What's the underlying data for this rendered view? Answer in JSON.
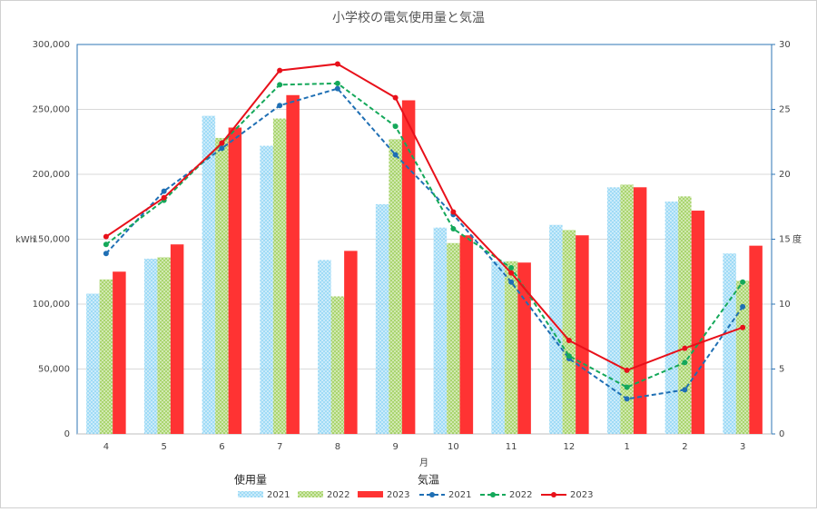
{
  "chart_data": {
    "type": "combo",
    "title": "小学校の電気使用量と気温",
    "xlabel": "月",
    "ylabel": "kWh",
    "y2label": "度",
    "categories": [
      "4",
      "5",
      "6",
      "7",
      "8",
      "9",
      "10",
      "11",
      "12",
      "1",
      "2",
      "3"
    ],
    "ylim": [
      0,
      300000
    ],
    "yticks": [
      0,
      {
        "value": 50000,
        "label": "50,000"
      },
      {
        "value": 100000,
        "label": "100,000"
      },
      {
        "value": 150000,
        "label": "150,000"
      },
      {
        "value": 200000,
        "label": "200,000"
      },
      {
        "value": 250000,
        "label": "250,000"
      },
      {
        "value": 300000,
        "label": "300,000"
      }
    ],
    "y2lim": [
      0,
      30
    ],
    "y2ticks": [
      0,
      5,
      10,
      15,
      20,
      25,
      30
    ],
    "grid": true,
    "bar_legend_title": "使用量",
    "line_legend_title": "気温",
    "bar_series": [
      {
        "name": "2021",
        "color": "#7fcff2",
        "pattern": true,
        "values": [
          108000,
          135000,
          245000,
          222000,
          134000,
          177000,
          159000,
          133000,
          161000,
          190000,
          179000,
          139000
        ]
      },
      {
        "name": "2022",
        "color": "#8dc63f",
        "pattern": true,
        "values": [
          119000,
          136000,
          228000,
          243000,
          106000,
          227000,
          147000,
          133000,
          157000,
          192000,
          183000,
          118000
        ]
      },
      {
        "name": "2023",
        "color": "#ff3333",
        "pattern": false,
        "values": [
          125000,
          146000,
          236000,
          261000,
          141000,
          257000,
          153000,
          132000,
          153000,
          190000,
          172000,
          145000
        ]
      }
    ],
    "line_series": [
      {
        "name": "2021",
        "color": "#1f6fb4",
        "dashed": true,
        "axis": "y2",
        "values": [
          13.9,
          18.7,
          22.0,
          25.3,
          26.6,
          21.5,
          16.9,
          11.7,
          5.8,
          2.7,
          3.4,
          9.8
        ]
      },
      {
        "name": "2022",
        "color": "#14a85a",
        "dashed": true,
        "axis": "y2",
        "values": [
          14.6,
          18.0,
          22.4,
          26.9,
          27.0,
          23.7,
          15.8,
          12.8,
          6.0,
          3.6,
          5.5,
          11.7
        ]
      },
      {
        "name": "2023",
        "color": "#e8101a",
        "dashed": false,
        "axis": "y2",
        "values": [
          15.2,
          18.2,
          22.4,
          28.0,
          28.5,
          25.9,
          17.1,
          12.4,
          7.2,
          4.9,
          6.6,
          8.2
        ]
      }
    ]
  }
}
